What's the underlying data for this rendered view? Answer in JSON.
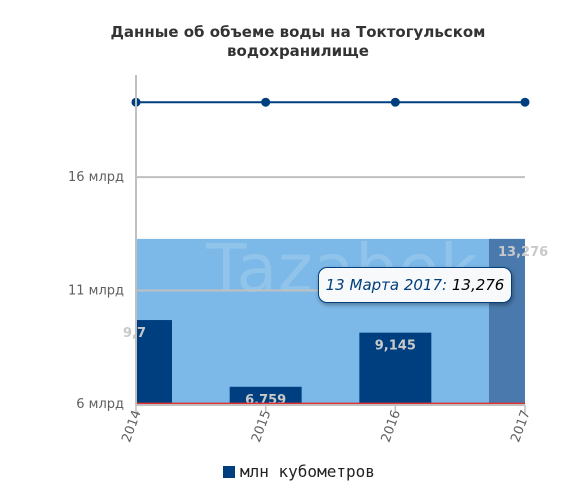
{
  "chart_data": {
    "type": "bar",
    "title_lines": [
      "Данные об объеме воды на Токтогульском",
      "водохранилище"
    ],
    "categories": [
      "2014",
      "2015",
      "2016",
      "2017"
    ],
    "series": [
      {
        "name": "млн кубометров",
        "values": [
          9.7,
          6.759,
          9.145,
          13.276
        ],
        "data_labels": [
          "9,7",
          "6,759",
          "9,145",
          "13,276"
        ]
      },
      {
        "values": [
          19.3,
          19.3,
          19.3,
          19.3
        ]
      },
      {
        "values": [
          6.03,
          6.03,
          6.03,
          6.03
        ]
      }
    ],
    "yticks": [
      {
        "value": 6,
        "label": "6 млрд"
      },
      {
        "value": 11,
        "label": "11 млрд"
      },
      {
        "value": 16,
        "label": "16 млрд"
      }
    ],
    "ylim": [
      6,
      20.5
    ],
    "plot_band_to": 13.276,
    "highlighted_category": "2017",
    "watermark": "Tazabek",
    "tooltip": {
      "label": "13 Марта 2017:",
      "value": "13,276"
    },
    "legend_position": "bottom-center",
    "colors": {
      "bar": "#003f7f",
      "bar_highlight": "#4a7aad",
      "plot_band": "#7db9e8",
      "top_line": "#003f7f",
      "bottom_line": "#e03030",
      "gridline": "#c0c0c0",
      "axis": "#c0c0c0"
    }
  }
}
